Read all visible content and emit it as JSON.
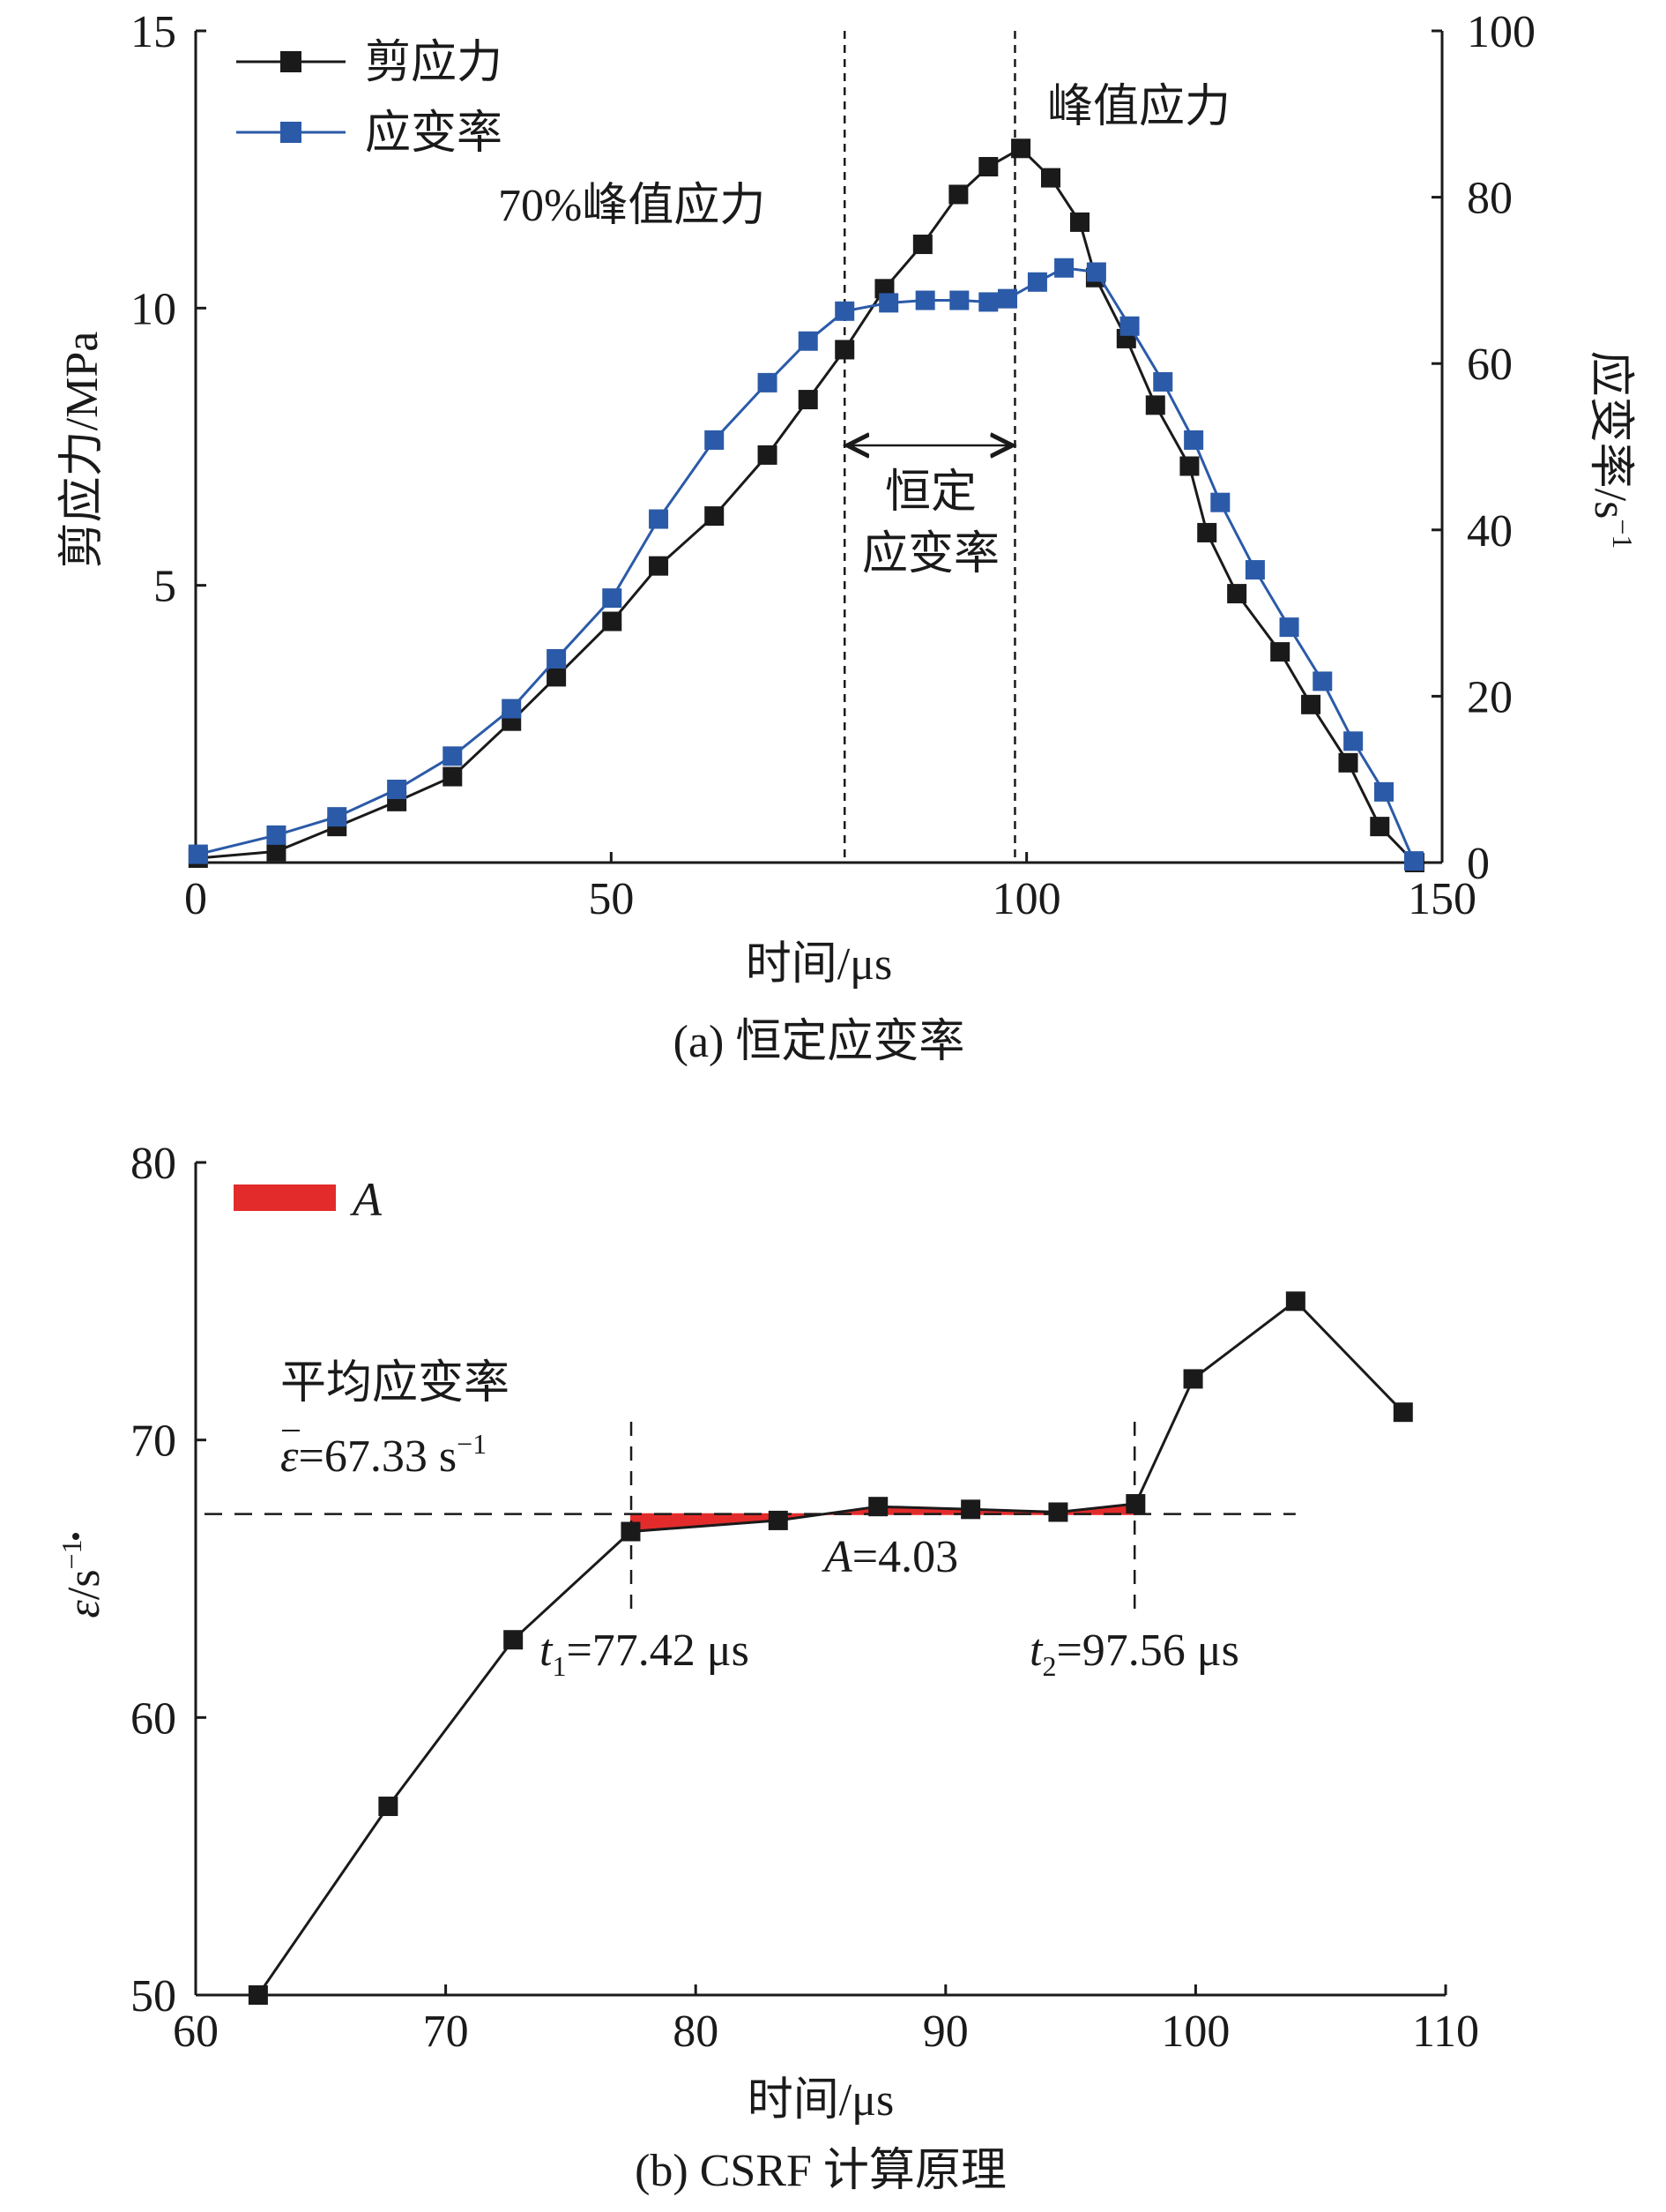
{
  "chart_data": [
    {
      "type": "line",
      "panel": "a",
      "caption": "(a) 恒定应变率",
      "xlabel": "时间/μs",
      "ylabel_left": "剪应力/MPa",
      "ylabel_right": "应变率/s",
      "ylabel_right_sup": "−1",
      "xlim": [
        0,
        150
      ],
      "ylim_left": [
        0,
        15
      ],
      "ylim_right": [
        0,
        100
      ],
      "xticks": [
        0,
        50,
        100,
        150
      ],
      "yticks_left": [
        5,
        10,
        15
      ],
      "yticks_right": [
        0,
        20,
        40,
        60,
        80,
        100
      ],
      "series": [
        {
          "name": "剪应力",
          "axis": "left",
          "color": "#1a1a1a",
          "x": [
            0.3,
            9.7,
            17,
            24.2,
            30.9,
            38,
            43.4,
            50.1,
            55.7,
            62.4,
            68.8,
            73.7,
            78.1,
            82.9,
            87.5,
            91.8,
            95.4,
            99.3,
            102.9,
            106.4,
            108.3,
            112,
            115.5,
            119.6,
            121.7,
            125.3,
            130.5,
            134.2,
            138.7,
            142.5,
            146.7
          ],
          "y": [
            0.08,
            0.2,
            0.65,
            1.1,
            1.55,
            2.55,
            3.35,
            4.35,
            5.35,
            6.25,
            7.35,
            8.35,
            9.25,
            10.35,
            11.15,
            12.05,
            12.55,
            12.88,
            12.35,
            11.55,
            10.55,
            9.45,
            8.25,
            7.15,
            5.95,
            4.85,
            3.8,
            2.85,
            1.8,
            0.65,
            0.0
          ]
        },
        {
          "name": "应变率",
          "axis": "right",
          "color": "#2b5aa8",
          "x": [
            0.3,
            9.7,
            17,
            24.2,
            30.9,
            38,
            43.4,
            50.1,
            55.7,
            62.4,
            68.8,
            73.7,
            78.1,
            83.4,
            87.8,
            91.9,
            95.4,
            97.7,
            101.3,
            104.5,
            108.4,
            112.4,
            116.4,
            120.1,
            123.3,
            127.5,
            131.6,
            135.6,
            139.3,
            143,
            146.6
          ],
          "y": [
            1,
            3.3,
            5.5,
            8.8,
            12.8,
            18.5,
            24.5,
            31.8,
            41.3,
            50.8,
            57.7,
            62.7,
            66.3,
            67.3,
            67.6,
            67.6,
            67.4,
            67.8,
            69.8,
            71.5,
            71,
            64.5,
            57.8,
            50.8,
            43.3,
            35.2,
            28.3,
            21.8,
            14.6,
            8.5,
            0.2
          ]
        }
      ],
      "vlines_x": [
        78.1,
        98.6
      ],
      "annotations": {
        "peak_label": "峰值应力",
        "seventy_label": "70%峰值应力",
        "constant_line1": "恒定",
        "constant_line2": "应变率"
      }
    },
    {
      "type": "line",
      "panel": "b",
      "caption": "(b) CSRF 计算原理",
      "xlabel": "时间/μs",
      "ylabel_base": "ε",
      "ylabel_unit": "/s",
      "ylabel_sup": "−1",
      "xlim": [
        60,
        110
      ],
      "ylim": [
        50,
        80
      ],
      "xticks": [
        60,
        70,
        80,
        90,
        100,
        110
      ],
      "yticks": [
        50,
        60,
        70,
        80
      ],
      "series": [
        {
          "name": "应变率",
          "color": "#1a1a1a",
          "x": [
            62.5,
            67.7,
            72.7,
            77.4,
            83.3,
            87.3,
            91.0,
            94.5,
            97.6,
            99.9,
            104.0,
            108.3
          ],
          "y": [
            50.0,
            56.8,
            62.8,
            66.7,
            67.1,
            67.6,
            67.5,
            67.4,
            67.7,
            72.2,
            75.0,
            71.0
          ]
        }
      ],
      "mean_line_y": 67.33,
      "mean_line_xrange": [
        60,
        104
      ],
      "vlines_x": [
        77.42,
        97.56
      ],
      "area_color": "#e32b2b",
      "legend_label": "A",
      "annotations": {
        "avg_title": "平均应变率",
        "avg_symbol": "ε",
        "avg_value": "=67.33 s",
        "avg_sup": "−1",
        "area_name": "A",
        "area_value": "=4.03",
        "t1_sym": "t",
        "t1_sub": "1",
        "t1_value": "=77.42 μs",
        "t2_sym": "t",
        "t2_sub": "2",
        "t2_value": "=97.56 μs"
      }
    }
  ]
}
